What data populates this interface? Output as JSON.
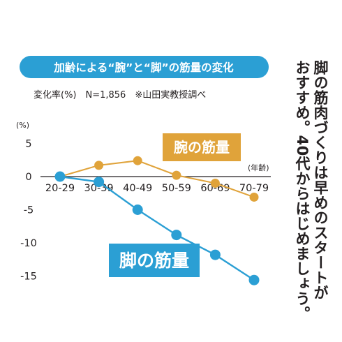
{
  "headline": {
    "line1": "脚の筋肉づくりは早めのスタートが",
    "line2": "おすすめ。40代からはじめましょう。"
  },
  "chart_data": {
    "type": "line",
    "title": "加齢による“腕”と“脚”の筋量の変化",
    "note": "変化率(%)　N=1,856　※山田実教授調べ",
    "y_unit_label": "(%)",
    "x_unit_label": "(年齢)",
    "categories": [
      "20-29",
      "30-39",
      "40-49",
      "50-59",
      "60-69",
      "70-79"
    ],
    "y_ticks": [
      5,
      0,
      -5,
      -10,
      -15
    ],
    "y_tick_labels": [
      "5",
      "0",
      "-5",
      "-10",
      "-15"
    ],
    "ylim": [
      -16,
      6
    ],
    "grid": false,
    "series": [
      {
        "name": "腕の筋量",
        "color": "#e0a33a",
        "values": [
          0,
          1.7,
          2.4,
          0.2,
          -1.0,
          -3.1
        ]
      },
      {
        "name": "脚の筋量",
        "color": "#2b9fd4",
        "values": [
          0,
          -0.8,
          -5.0,
          -8.8,
          -11.8,
          -15.6
        ]
      }
    ],
    "colors": {
      "banner": "#2b9fd4",
      "axis": "#231f20"
    }
  }
}
